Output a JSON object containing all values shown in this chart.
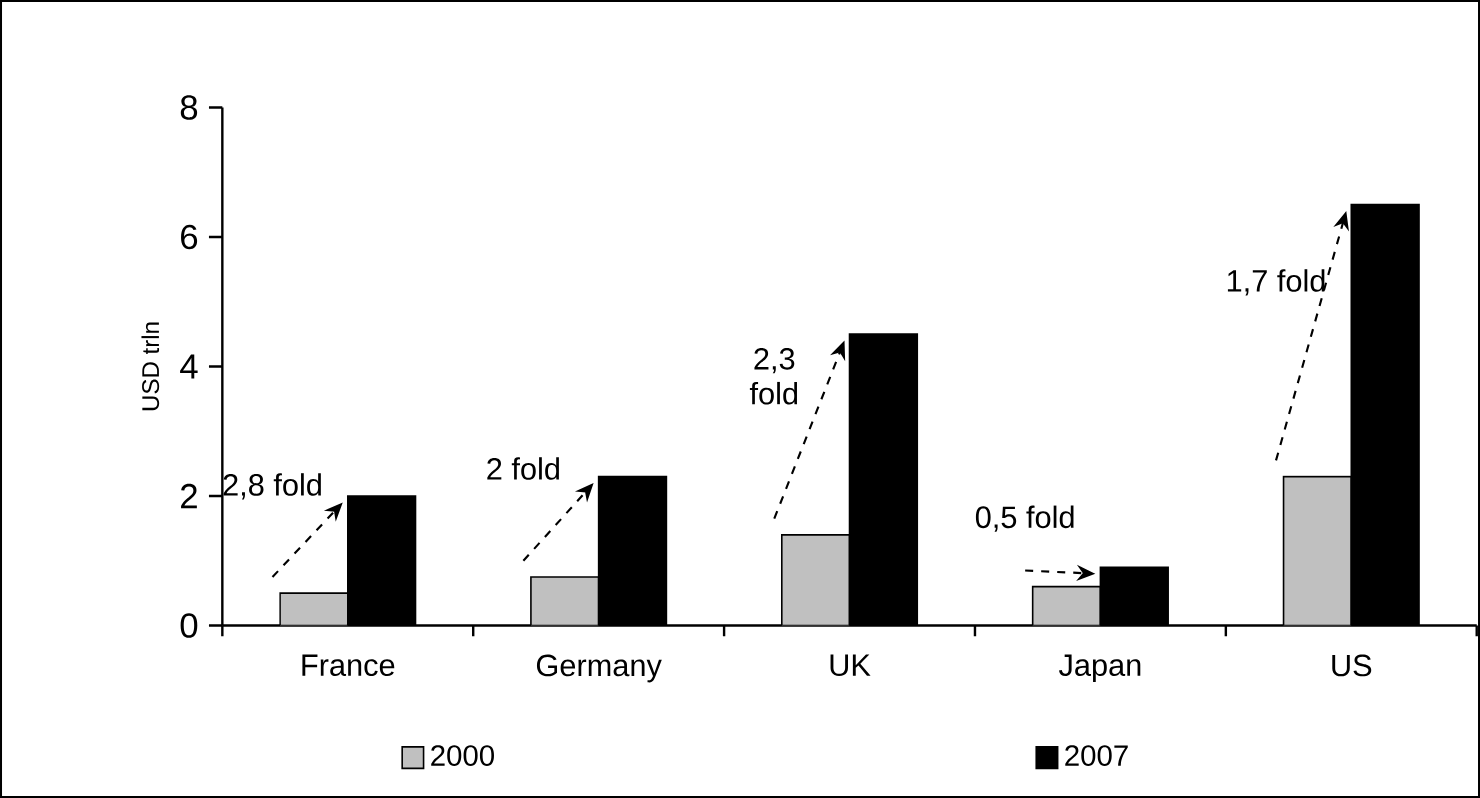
{
  "chart_data": {
    "type": "bar",
    "ylabel": "USD trln",
    "categories": [
      "France",
      "Germany",
      "UK",
      "Japan",
      "US"
    ],
    "series": [
      {
        "name": "2000",
        "color": "#c0c0c0",
        "values": [
          0.5,
          0.75,
          1.4,
          0.6,
          2.3
        ]
      },
      {
        "name": "2007",
        "color": "#000000",
        "values": [
          2.0,
          2.3,
          4.5,
          0.9,
          6.5
        ]
      }
    ],
    "ylim": [
      0,
      8
    ],
    "yticks": [
      0,
      2,
      4,
      6,
      8
    ],
    "grid": false,
    "legend": "bottom",
    "annotations": [
      "2,8 fold",
      "2 fold",
      "2,3 fold",
      "0,5 fold",
      "1,7 fold"
    ]
  }
}
